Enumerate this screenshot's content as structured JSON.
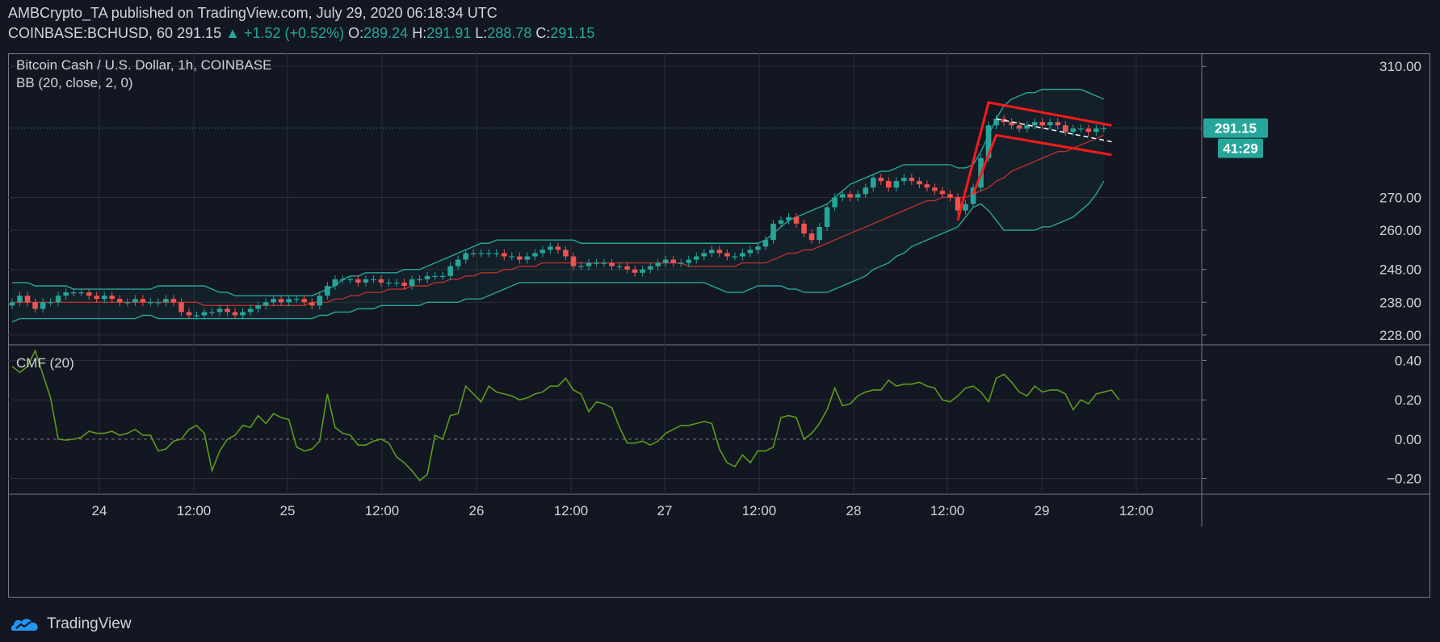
{
  "header": {
    "publisher": "AMBCrypto_TA",
    "published_text": "published on TradingView.com, July 29, 2020 06:18:34 UTC",
    "symbol": "COINBASE:BCHUSD, 60",
    "price": "291.15",
    "change_icon": "triangle-up-icon",
    "change": "+1.52 (+0.52%)",
    "o_label": "O:",
    "o": "289.24",
    "h_label": "H:",
    "h": "291.91",
    "l_label": "L:",
    "l": "288.78",
    "c_label": "C:",
    "c": "291.15"
  },
  "pane_titles": {
    "main": "Bitcoin Cash / U.S. Dollar, 1h, COINBASE",
    "bb": "BB (20, close, 2, 0)",
    "cmf": "CMF (20)"
  },
  "price_badge": "291.15",
  "countdown_badge": "41:29",
  "footer": {
    "brand": "TradingView",
    "logo_icon": "tradingview-logo-icon"
  },
  "colors": {
    "background": "#131722",
    "up": "#26a69a",
    "down": "#ef5350",
    "bb_band": "#26a69a",
    "bb_basis": "#b7312c",
    "cmf_line": "#5b9a1e",
    "pattern": "#ff1a1a"
  },
  "chart_data": [
    {
      "type": "candlestick",
      "title": "Bitcoin Cash / U.S. Dollar, 1h, COINBASE",
      "x_tick_labels": [
        "24",
        "12:00",
        "25",
        "12:00",
        "26",
        "12:00",
        "27",
        "12:00",
        "28",
        "12:00",
        "29",
        "12:00"
      ],
      "y_tick_labels": [
        "310.00",
        "270.00",
        "260.00",
        "248.00",
        "238.00",
        "228.00"
      ],
      "ylim": [
        225,
        314
      ],
      "grid": true,
      "annotations": [
        "bear flag pattern drawn in red",
        "horizontal dotted line at last price 291.15"
      ],
      "close": [
        238,
        240,
        238,
        236,
        238,
        238,
        240,
        241,
        241,
        241,
        240,
        239,
        240,
        239,
        238,
        238,
        239,
        238,
        238,
        238,
        239,
        238,
        235,
        234,
        234,
        235,
        235,
        236,
        235,
        234,
        235,
        236,
        237,
        238,
        239,
        238,
        239,
        239,
        238,
        237,
        240,
        243,
        245,
        245,
        245,
        244,
        245,
        245,
        244,
        244,
        244,
        243,
        245,
        245,
        246,
        246,
        246,
        249,
        251,
        253,
        253,
        253,
        253,
        253,
        252,
        252,
        251,
        252,
        253,
        254,
        255,
        254,
        252,
        249,
        249,
        250,
        250,
        250,
        249,
        249,
        248,
        247,
        248,
        249,
        250,
        251,
        250,
        250,
        251,
        252,
        253,
        254,
        253,
        252,
        252,
        253,
        254,
        255,
        257,
        262,
        263,
        264,
        262,
        259,
        257,
        261,
        267,
        270,
        271,
        270,
        271,
        273,
        276,
        275,
        273,
        275,
        276,
        275,
        274,
        273,
        272,
        271,
        270,
        266,
        268,
        273,
        282,
        292,
        294,
        293,
        292,
        291,
        292,
        293,
        292,
        293,
        292,
        290,
        291,
        291,
        290,
        291,
        291.15
      ],
      "bb_upper": [
        244,
        244,
        244,
        243,
        243,
        243,
        243,
        243,
        242,
        242,
        242,
        242,
        242,
        242,
        242,
        242,
        242,
        242,
        242,
        243,
        243,
        243,
        243,
        243,
        243,
        243,
        242,
        241,
        241,
        240,
        240,
        240,
        240,
        240,
        240,
        240,
        240,
        240,
        240,
        240,
        241,
        242,
        243,
        245,
        246,
        246,
        247,
        247,
        247,
        247,
        247,
        248,
        248,
        248,
        249,
        250,
        251,
        252,
        253,
        254,
        255,
        256,
        256,
        257,
        257,
        257,
        257,
        257,
        257,
        257,
        257,
        257,
        257,
        257,
        256,
        256,
        256,
        256,
        256,
        256,
        256,
        256,
        256,
        256,
        256,
        256,
        256,
        256,
        256,
        256,
        256,
        256,
        256,
        256,
        256,
        256,
        256,
        256,
        257,
        259,
        261,
        263,
        264,
        265,
        266,
        267,
        268,
        270,
        272,
        274,
        275,
        276,
        277,
        278,
        278,
        279,
        280,
        280,
        280,
        280,
        280,
        280,
        280,
        279,
        279,
        280,
        284,
        289,
        294,
        298,
        300,
        301,
        302,
        302,
        303,
        303,
        303,
        303,
        303,
        303,
        302,
        301,
        300
      ],
      "bb_basis": [
        238,
        238,
        238,
        238,
        238,
        238,
        238,
        238,
        238,
        238,
        238,
        238,
        238,
        238,
        238,
        238,
        238,
        238,
        238,
        238,
        238,
        238,
        238,
        238,
        238,
        237,
        237,
        237,
        237,
        237,
        237,
        237,
        237,
        237,
        237,
        237,
        237,
        237,
        237,
        238,
        238,
        238,
        239,
        239,
        240,
        240,
        241,
        241,
        241,
        242,
        242,
        242,
        243,
        243,
        243,
        244,
        244,
        245,
        245,
        246,
        246,
        247,
        247,
        247,
        248,
        248,
        249,
        249,
        249,
        250,
        250,
        250,
        250,
        250,
        250,
        250,
        250,
        250,
        250,
        250,
        250,
        250,
        250,
        250,
        250,
        250,
        250,
        250,
        249,
        249,
        249,
        249,
        249,
        249,
        249,
        250,
        250,
        250,
        250,
        251,
        252,
        253,
        253,
        254,
        254,
        255,
        256,
        257,
        258,
        259,
        260,
        261,
        262,
        263,
        264,
        265,
        266,
        267,
        268,
        269,
        269,
        270,
        270,
        270,
        270,
        271,
        272,
        273,
        275,
        276,
        278,
        279,
        280,
        281,
        282,
        283,
        284,
        284,
        285,
        286,
        287,
        288,
        289
      ],
      "bb_lower": [
        232,
        233,
        233,
        233,
        233,
        233,
        233,
        233,
        233,
        233,
        233,
        233,
        233,
        233,
        233,
        233,
        233,
        234,
        234,
        233,
        233,
        233,
        233,
        233,
        233,
        233,
        233,
        233,
        233,
        233,
        233,
        233,
        233,
        233,
        233,
        233,
        233,
        233,
        233,
        233,
        234,
        234,
        235,
        235,
        235,
        236,
        236,
        236,
        237,
        237,
        237,
        237,
        237,
        237,
        238,
        238,
        238,
        238,
        238,
        239,
        239,
        239,
        240,
        241,
        242,
        243,
        244,
        244,
        244,
        244,
        244,
        244,
        244,
        244,
        244,
        244,
        244,
        244,
        244,
        244,
        244,
        244,
        244,
        244,
        244,
        244,
        244,
        244,
        244,
        244,
        244,
        243,
        242,
        241,
        241,
        241,
        242,
        243,
        243,
        243,
        243,
        242,
        242,
        241,
        241,
        241,
        241,
        242,
        243,
        244,
        245,
        246,
        248,
        249,
        250,
        252,
        253,
        255,
        256,
        257,
        258,
        259,
        260,
        261,
        264,
        267,
        268,
        266,
        263,
        260,
        260,
        260,
        260,
        260,
        261,
        261,
        262,
        263,
        264,
        266,
        268,
        271,
        275
      ]
    },
    {
      "type": "line",
      "title": "CMF (20)",
      "y_tick_labels": [
        "0.40",
        "0.20",
        "0.00",
        "−0.20"
      ],
      "ylim": [
        -0.28,
        0.48
      ],
      "zero_line": "dashed",
      "values": [
        0.37,
        0.34,
        0.37,
        0.45,
        0.33,
        0.21,
        0.0,
        -0.005,
        0.0,
        0.01,
        0.04,
        0.03,
        0.03,
        0.04,
        0.02,
        0.03,
        0.05,
        0.02,
        0.02,
        -0.06,
        -0.05,
        -0.01,
        0.0,
        0.05,
        0.07,
        0.03,
        -0.16,
        -0.06,
        0.0,
        0.02,
        0.07,
        0.06,
        0.12,
        0.08,
        0.13,
        0.11,
        0.1,
        -0.04,
        -0.06,
        -0.05,
        -0.01,
        0.23,
        0.06,
        0.03,
        0.02,
        -0.03,
        -0.03,
        -0.01,
        0.0,
        -0.02,
        -0.09,
        -0.12,
        -0.16,
        -0.21,
        -0.18,
        0.02,
        -0.0,
        0.12,
        0.13,
        0.27,
        0.23,
        0.19,
        0.27,
        0.24,
        0.23,
        0.22,
        0.2,
        0.21,
        0.23,
        0.24,
        0.27,
        0.27,
        0.31,
        0.25,
        0.23,
        0.14,
        0.19,
        0.18,
        0.16,
        0.06,
        -0.02,
        -0.02,
        -0.01,
        -0.03,
        -0.01,
        0.03,
        0.05,
        0.07,
        0.07,
        0.08,
        0.09,
        0.08,
        -0.05,
        -0.12,
        -0.14,
        -0.08,
        -0.12,
        -0.06,
        -0.06,
        -0.04,
        0.11,
        0.12,
        0.11,
        0.0,
        0.03,
        0.08,
        0.15,
        0.26,
        0.17,
        0.18,
        0.22,
        0.24,
        0.25,
        0.25,
        0.3,
        0.27,
        0.28,
        0.28,
        0.29,
        0.27,
        0.26,
        0.2,
        0.19,
        0.22,
        0.26,
        0.27,
        0.24,
        0.19,
        0.31,
        0.33,
        0.29,
        0.24,
        0.22,
        0.27,
        0.24,
        0.25,
        0.25,
        0.23,
        0.15,
        0.2,
        0.18,
        0.23,
        0.24,
        0.25,
        0.2
      ]
    }
  ]
}
